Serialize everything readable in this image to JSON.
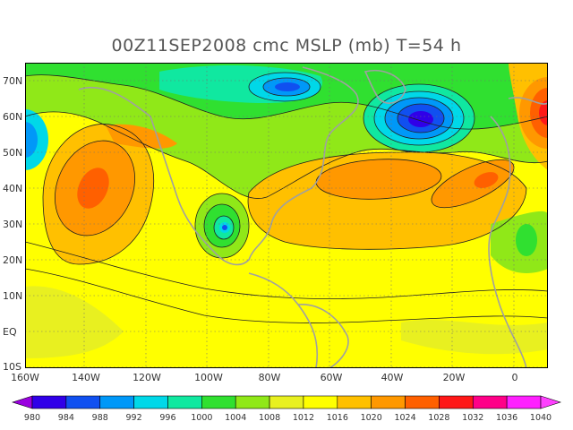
{
  "title": "00Z11SEP2008 cmc MSLP (mb) T=54 h",
  "map": {
    "lon_labels": [
      "160W",
      "140W",
      "120W",
      "100W",
      "80W",
      "60W",
      "40W",
      "20W",
      "0"
    ],
    "lat_labels": [
      "70N",
      "60N",
      "50N",
      "40N",
      "30N",
      "20N",
      "10N",
      "EQ",
      "10S"
    ],
    "lon_range": [
      -160,
      10
    ],
    "lat_range": [
      -10,
      75
    ]
  },
  "colorbar": {
    "levels": [
      "980",
      "984",
      "988",
      "992",
      "996",
      "1000",
      "1004",
      "1008",
      "1012",
      "1016",
      "1020",
      "1024",
      "1028",
      "1032",
      "1036",
      "1040"
    ],
    "colors": [
      "#9a00e0",
      "#3000e8",
      "#1050f0",
      "#0098f8",
      "#00d8e8",
      "#10e8a0",
      "#30e030",
      "#90e818",
      "#e8f020",
      "#ffff00",
      "#ffc000",
      "#ff9800",
      "#ff6000",
      "#ff1818",
      "#ff0088",
      "#ff20ff",
      "#ff40ff"
    ]
  },
  "palette": {
    "land_outline": "#a0a0a0",
    "contour": "#202020",
    "grid": "#707070"
  }
}
